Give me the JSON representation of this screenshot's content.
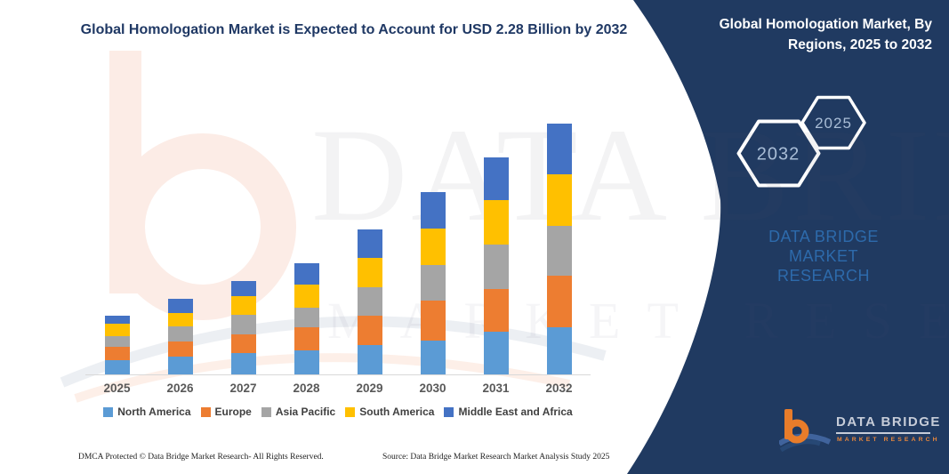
{
  "header": {
    "title": "Global Homologation Market is Expected to Account for USD 2.28 Billion by 2032"
  },
  "panel": {
    "title": "Global Homologation Market, By Regions, 2025 to 2032",
    "bg_color": "#203a61",
    "hexagon_back_label": "2032",
    "hexagon_front_label": "2025",
    "brand_line1": "DATA BRIDGE MARKET",
    "brand_line2": "RESEARCH",
    "logo_name": "DATA BRIDGE",
    "logo_tagline": "MARKET RESEARCH",
    "logo_orange": "#e87c2a"
  },
  "watermark": {
    "big_text": "DATA BRIDGE",
    "row_text": "MARKET RESEARCH"
  },
  "chart_data": {
    "type": "bar",
    "stacked": true,
    "title": "Global Homologation Market is Expected to Account for USD 2.28 Billion by 2032",
    "unit": "USD Billion",
    "categories": [
      "2025",
      "2026",
      "2027",
      "2028",
      "2029",
      "2030",
      "2031",
      "2032"
    ],
    "series": [
      {
        "name": "North America",
        "color": "#5B9BD5",
        "values": [
          0.13,
          0.16,
          0.19,
          0.22,
          0.27,
          0.31,
          0.39,
          0.43
        ]
      },
      {
        "name": "Europe",
        "color": "#ED7D31",
        "values": [
          0.12,
          0.14,
          0.17,
          0.21,
          0.27,
          0.36,
          0.39,
          0.47
        ]
      },
      {
        "name": "Asia Pacific",
        "color": "#A5A5A5",
        "values": [
          0.1,
          0.14,
          0.18,
          0.18,
          0.26,
          0.32,
          0.4,
          0.45
        ]
      },
      {
        "name": "South America",
        "color": "#FFC000",
        "values": [
          0.11,
          0.12,
          0.17,
          0.21,
          0.27,
          0.33,
          0.4,
          0.47
        ]
      },
      {
        "name": "Middle East and Africa",
        "color": "#4472C4",
        "values": [
          0.07,
          0.13,
          0.14,
          0.19,
          0.26,
          0.33,
          0.39,
          0.46
        ]
      }
    ],
    "totals": [
      0.53,
      0.69,
      0.85,
      1.01,
      1.33,
      1.65,
      1.97,
      2.28
    ],
    "ylim": [
      0,
      2.4
    ],
    "gridlines": false,
    "y_axis_visible": false,
    "legend_position": "bottom"
  },
  "footer": {
    "left": "DMCA Protected © Data Bridge Market Research-  All Rights Reserved.",
    "right": "Source: Data Bridge Market Research  Market Analysis Study 2025"
  }
}
